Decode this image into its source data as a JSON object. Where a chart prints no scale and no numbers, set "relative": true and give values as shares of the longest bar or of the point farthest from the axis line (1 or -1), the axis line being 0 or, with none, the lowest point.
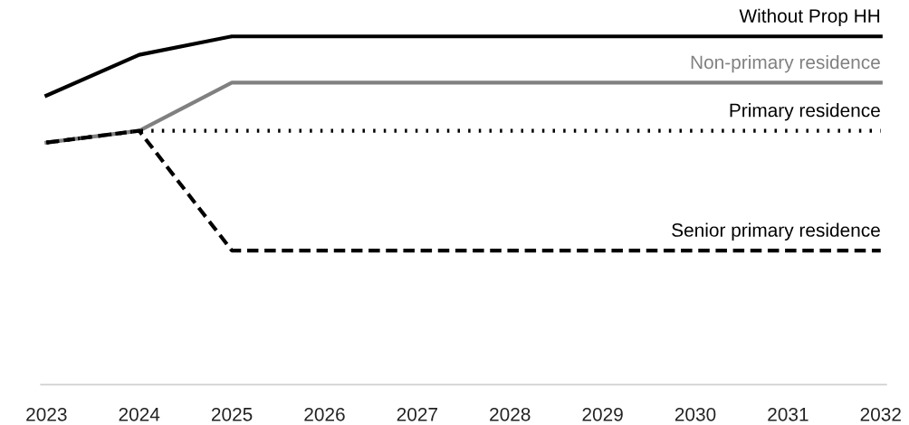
{
  "chart_data": {
    "type": "line",
    "relative": true,
    "grid": false,
    "legend": false,
    "marker": "none",
    "categories": [
      "2023",
      "2024",
      "2025",
      "2026",
      "2027",
      "2028",
      "2029",
      "2030",
      "2031",
      "2032"
    ],
    "series": [
      {
        "name": "Without Prop HH",
        "color": "#000000",
        "line_style": "solid",
        "values": [
          0.83,
          0.947,
          1,
          1,
          1,
          1,
          1,
          1,
          1,
          1
        ]
      },
      {
        "name": "Non-primary residence",
        "color": "#808080",
        "line_style": "solid",
        "values": [
          0.695,
          0.729,
          0.867,
          0.867,
          0.867,
          0.867,
          0.867,
          0.867,
          0.867,
          0.867
        ]
      },
      {
        "name": "Primary residence",
        "color": "#000000",
        "line_style": "dotted",
        "values": [
          0.695,
          0.729,
          0.729,
          0.729,
          0.729,
          0.729,
          0.729,
          0.729,
          0.729,
          0.729
        ]
      },
      {
        "name": "Senior primary residence",
        "color": "#000000",
        "line_style": "dashed",
        "values": [
          0.695,
          0.729,
          0.385,
          0.385,
          0.385,
          0.385,
          0.385,
          0.385,
          0.385,
          0.385
        ]
      }
    ]
  }
}
